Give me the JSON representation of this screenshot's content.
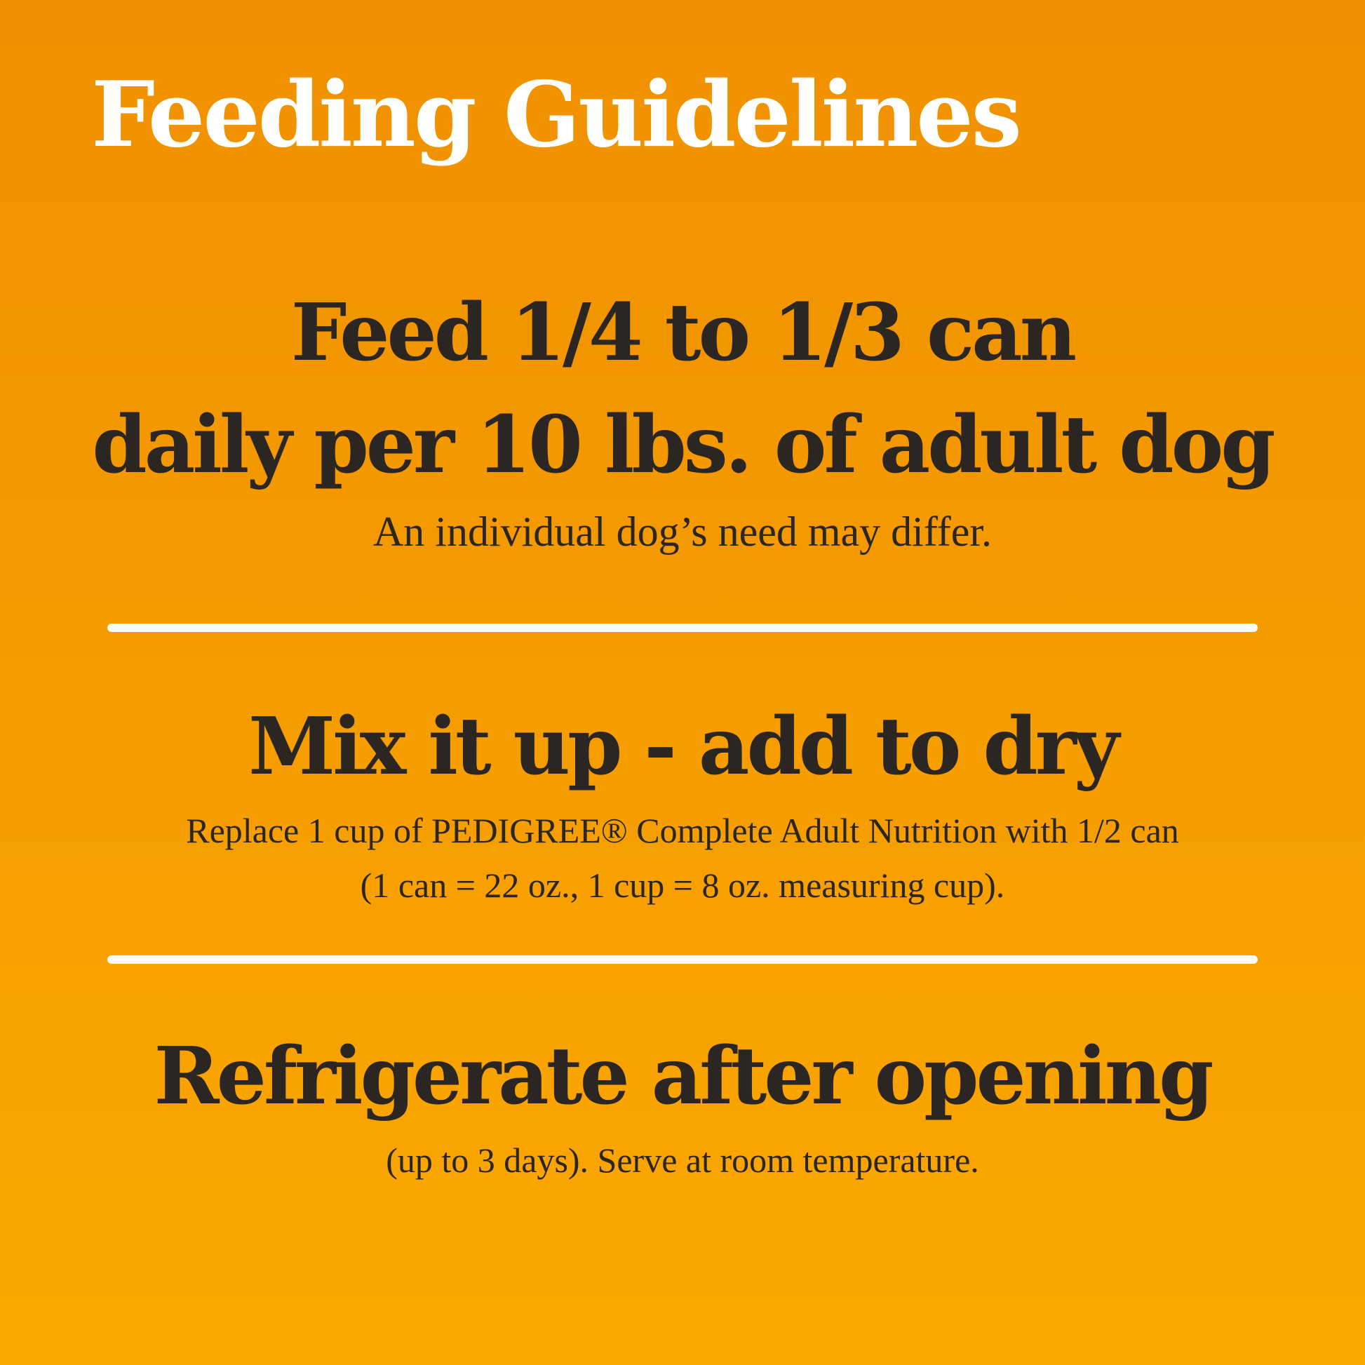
{
  "title": "Feeding Guidelines",
  "sections": [
    {
      "heading_lines": [
        "Feed 1/4 to 1/3 can",
        "daily per 10 lbs. of adult dog"
      ],
      "sub_lines": [
        "An individual dog’s need may differ."
      ]
    },
    {
      "heading_lines": [
        "Mix it up - add to dry"
      ],
      "sub_lines": [
        "Replace 1 cup of PEDIGREE® Complete Adult Nutrition with 1/2 can",
        "(1 can = 22 oz., 1 cup = 8 oz. measuring cup)."
      ]
    },
    {
      "heading_lines": [
        "Refrigerate after opening"
      ],
      "sub_lines": [
        "(up to 3 days). Serve at room temperature."
      ]
    }
  ],
  "colors": {
    "background_top": "#F09000",
    "background_bottom": "#FBA800",
    "text": "#2b2622",
    "title": "#FFFFFF",
    "divider": "#FFFFFF"
  }
}
